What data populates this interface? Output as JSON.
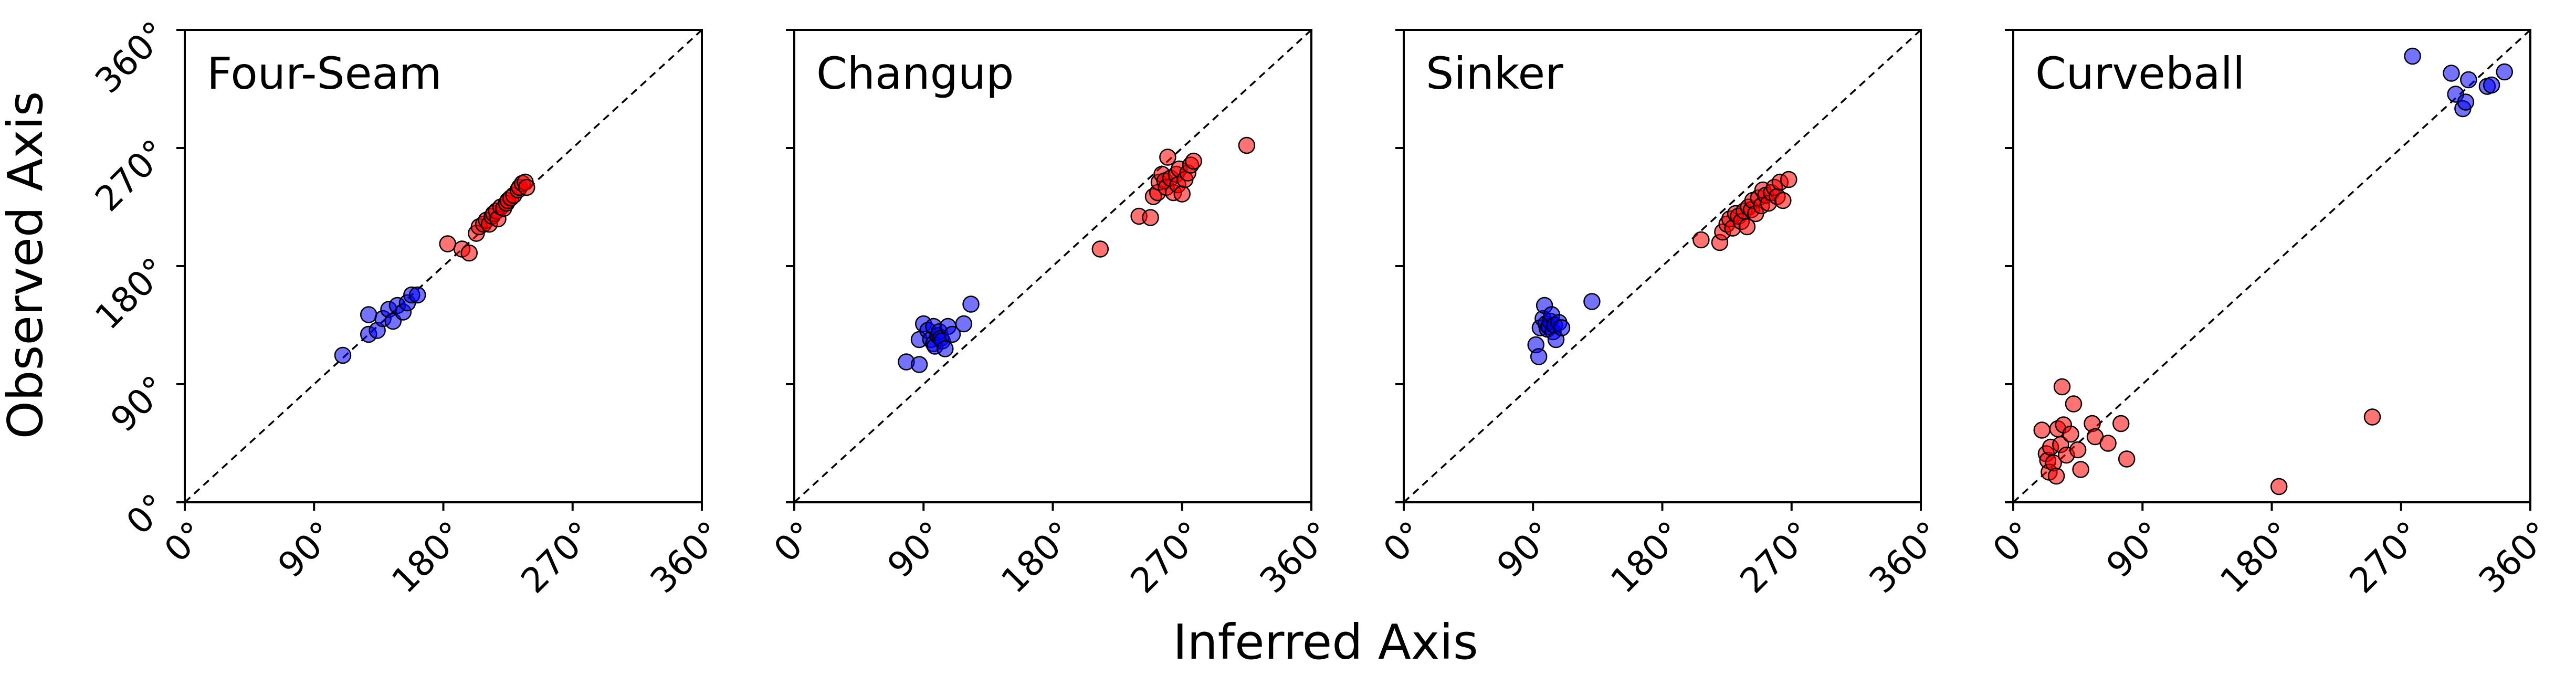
{
  "chart_data": {
    "type": "scatter",
    "xlabel": "Inferred Axis",
    "ylabel": "Observed Axis",
    "xlim": [
      0,
      360
    ],
    "ylim": [
      0,
      360
    ],
    "xticks": [
      "0°",
      "90°",
      "180°",
      "270°",
      "360°"
    ],
    "yticks": [
      "0°",
      "90°",
      "180°",
      "270°",
      "360°"
    ],
    "grid": false,
    "reference_line": "y = x (dashed)",
    "colors": {
      "blue_group": "#0000ff",
      "red_group": "#ff0000"
    },
    "panels": [
      {
        "title": "Four-Seam",
        "series": [
          {
            "color": "blue",
            "points": [
              [
                110,
                112
              ],
              [
                128,
                128
              ],
              [
                128,
                143
              ],
              [
                134,
                131
              ],
              [
                138,
                140
              ],
              [
                142,
                147
              ],
              [
                145,
                138
              ],
              [
                148,
                150
              ],
              [
                152,
                145
              ],
              [
                155,
                152
              ],
              [
                158,
                158
              ],
              [
                162,
                158
              ]
            ]
          },
          {
            "color": "red",
            "points": [
              [
                183,
                197
              ],
              [
                193,
                193
              ],
              [
                198,
                190
              ],
              [
                203,
                205
              ],
              [
                205,
                210
              ],
              [
                208,
                212
              ],
              [
                210,
                215
              ],
              [
                212,
                212
              ],
              [
                214,
                218
              ],
              [
                215,
                220
              ],
              [
                217,
                222
              ],
              [
                218,
                216
              ],
              [
                220,
                225
              ],
              [
                222,
                224
              ],
              [
                224,
                228
              ],
              [
                225,
                230
              ],
              [
                227,
                232
              ],
              [
                229,
                234
              ],
              [
                232,
                238
              ],
              [
                233,
                240
              ],
              [
                235,
                243
              ],
              [
                237,
                244
              ],
              [
                238,
                240
              ]
            ]
          }
        ]
      },
      {
        "title": "Changup",
        "series": [
          {
            "color": "blue",
            "points": [
              [
                78,
                107
              ],
              [
                87,
                105
              ],
              [
                87,
                124
              ],
              [
                90,
                136
              ],
              [
                93,
                131
              ],
              [
                95,
                124
              ],
              [
                97,
                121
              ],
              [
                97,
                134
              ],
              [
                98,
                119
              ],
              [
                100,
                127
              ],
              [
                101,
                130
              ],
              [
                102,
                125
              ],
              [
                103,
                123
              ],
              [
                105,
                117
              ],
              [
                107,
                134
              ],
              [
                110,
                128
              ],
              [
                118,
                136
              ],
              [
                123,
                151
              ]
            ]
          },
          {
            "color": "red",
            "points": [
              [
                213,
                193
              ],
              [
                240,
                218
              ],
              [
                248,
                217
              ],
              [
                250,
                233
              ],
              [
                253,
                236
              ],
              [
                254,
                244
              ],
              [
                256,
                250
              ],
              [
                258,
                245
              ],
              [
                259,
                240
              ],
              [
                260,
                263
              ],
              [
                262,
                247
              ],
              [
                264,
                236
              ],
              [
                266,
                250
              ],
              [
                267,
                242
              ],
              [
                268,
                254
              ],
              [
                270,
                235
              ],
              [
                272,
                246
              ],
              [
                274,
                251
              ],
              [
                276,
                257
              ],
              [
                278,
                260
              ],
              [
                315,
                272
              ]
            ]
          }
        ]
      },
      {
        "title": "Sinker",
        "series": [
          {
            "color": "blue",
            "points": [
              [
                92,
                120
              ],
              [
                94,
                111
              ],
              [
                95,
                133
              ],
              [
                97,
                140
              ],
              [
                98,
                150
              ],
              [
                99,
                136
              ],
              [
                100,
                132
              ],
              [
                101,
                134
              ],
              [
                102,
                138
              ],
              [
                103,
                143
              ],
              [
                104,
                130
              ],
              [
                105,
                135
              ],
              [
                106,
                124
              ],
              [
                108,
                137
              ],
              [
                110,
                133
              ],
              [
                131,
                153
              ]
            ]
          },
          {
            "color": "red",
            "points": [
              [
                207,
                200
              ],
              [
                220,
                198
              ],
              [
                222,
                206
              ],
              [
                225,
                212
              ],
              [
                227,
                216
              ],
              [
                229,
                209
              ],
              [
                231,
                220
              ],
              [
                233,
                218
              ],
              [
                235,
                214
              ],
              [
                237,
                222
              ],
              [
                239,
                210
              ],
              [
                240,
                225
              ],
              [
                242,
                223
              ],
              [
                243,
                230
              ],
              [
                245,
                220
              ],
              [
                247,
                232
              ],
              [
                249,
                226
              ],
              [
                250,
                238
              ],
              [
                252,
                234
              ],
              [
                254,
                228
              ],
              [
                256,
                236
              ],
              [
                258,
                240
              ],
              [
                260,
                233
              ],
              [
                262,
                244
              ],
              [
                264,
                230
              ],
              [
                268,
                246
              ]
            ]
          }
        ]
      },
      {
        "title": "Curveball",
        "series": [
          {
            "color": "blue",
            "points": [
              [
                278,
                340
              ],
              [
                305,
                327
              ],
              [
                308,
                311
              ],
              [
                313,
                300
              ],
              [
                315,
                305
              ],
              [
                317,
                322
              ],
              [
                330,
                317
              ],
              [
                333,
                318
              ],
              [
                342,
                328
              ]
            ]
          },
          {
            "color": "red",
            "points": [
              [
                20,
                55
              ],
              [
                23,
                37
              ],
              [
                24,
                32
              ],
              [
                25,
                23
              ],
              [
                26,
                42
              ],
              [
                28,
                30
              ],
              [
                30,
                20
              ],
              [
                31,
                56
              ],
              [
                33,
                44
              ],
              [
                34,
                88
              ],
              [
                35,
                59
              ],
              [
                37,
                36
              ],
              [
                40,
                52
              ],
              [
                42,
                75
              ],
              [
                45,
                40
              ],
              [
                47,
                25
              ],
              [
                55,
                60
              ],
              [
                57,
                50
              ],
              [
                66,
                45
              ],
              [
                75,
                60
              ],
              [
                79,
                33
              ],
              [
                185,
                12
              ],
              [
                250,
                65
              ]
            ]
          }
        ]
      }
    ]
  }
}
